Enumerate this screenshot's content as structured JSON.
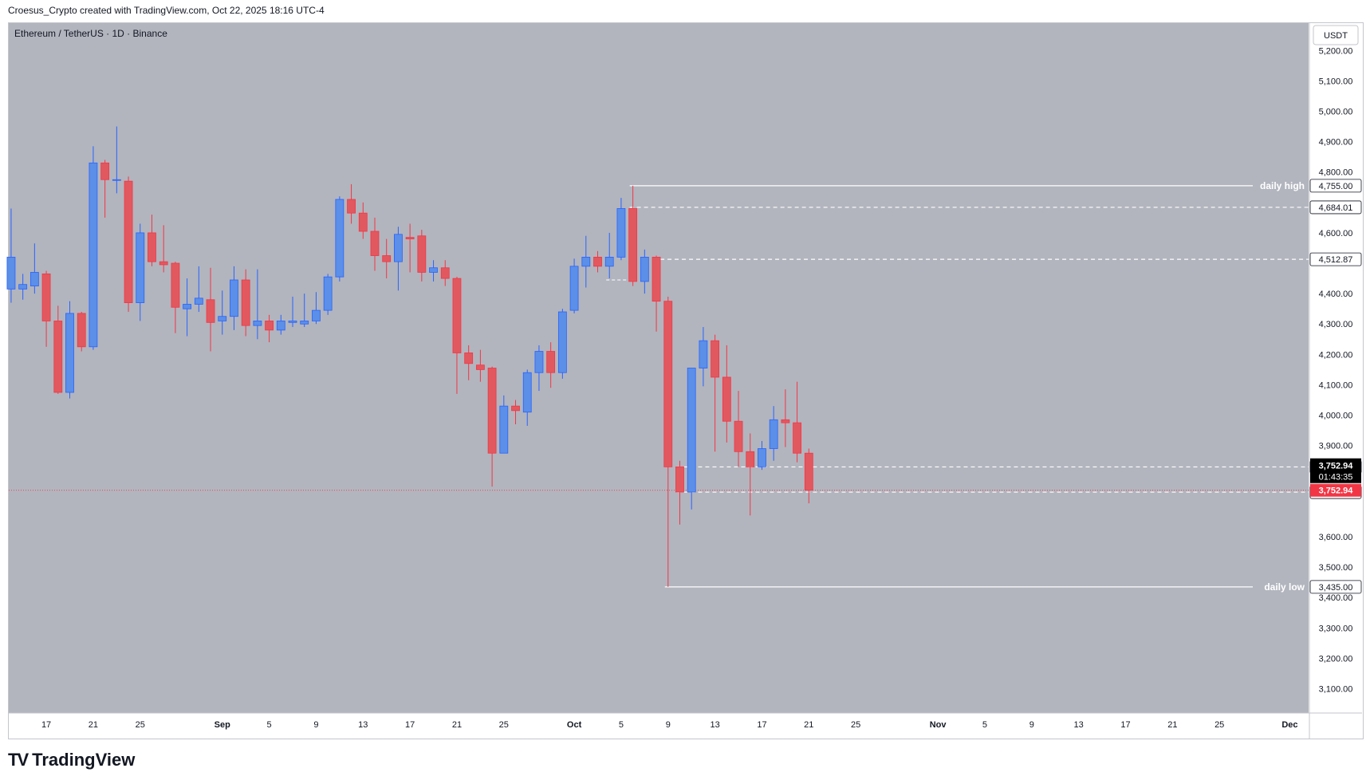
{
  "header": {
    "attribution": "Croesus_Crypto created with TradingView.com, Oct 22, 2025 18:16 UTC-4"
  },
  "symbol": {
    "title": "Ethereum / TetherUS · 1D · Binance"
  },
  "currency_button": {
    "label": "USDT"
  },
  "logo": {
    "mark": "TV",
    "text": "TradingView"
  },
  "colors": {
    "background": "#b2b5be",
    "up": "#5b8fe8",
    "up_wick": "#2962ff",
    "down": "#e2585f",
    "down_wick": "#f23645",
    "level_line": "#ffffff",
    "price_badge": "#f23645",
    "countdown_badge": "#000000"
  },
  "chart_data": {
    "type": "candlestick",
    "title": "Ethereum / TetherUS · 1D · Binance",
    "interval": "1D",
    "ylim": [
      3020,
      5290
    ],
    "y_ticks": [
      {
        "value": 3100,
        "label": "3,100.00"
      },
      {
        "value": 3200,
        "label": "3,200.00"
      },
      {
        "value": 3300,
        "label": "3,300.00"
      },
      {
        "value": 3400,
        "label": "3,400.00"
      },
      {
        "value": 3500,
        "label": "3,500.00"
      },
      {
        "value": 3600,
        "label": "3,600.00"
      },
      {
        "value": 3900,
        "label": "3,900.00"
      },
      {
        "value": 4000,
        "label": "4,000.00"
      },
      {
        "value": 4100,
        "label": "4,100.00"
      },
      {
        "value": 4200,
        "label": "4,200.00"
      },
      {
        "value": 4300,
        "label": "4,300.00"
      },
      {
        "value": 4400,
        "label": "4,400.00"
      },
      {
        "value": 4600,
        "label": "4,600.00"
      },
      {
        "value": 4800,
        "label": "4,800.00"
      },
      {
        "value": 4900,
        "label": "4,900.00"
      },
      {
        "value": 5000,
        "label": "5,000.00"
      },
      {
        "value": 5100,
        "label": "5,100.00"
      },
      {
        "value": 5200,
        "label": "5,200.00"
      }
    ],
    "x_ticks": [
      {
        "day": 17,
        "label": "17"
      },
      {
        "day": 21,
        "label": "21"
      },
      {
        "day": 25,
        "label": "25"
      },
      {
        "day": 32,
        "label": "Sep"
      },
      {
        "day": 36,
        "label": "5"
      },
      {
        "day": 40,
        "label": "9"
      },
      {
        "day": 44,
        "label": "13"
      },
      {
        "day": 48,
        "label": "17"
      },
      {
        "day": 52,
        "label": "21"
      },
      {
        "day": 56,
        "label": "25"
      },
      {
        "day": 62,
        "label": "Oct"
      },
      {
        "day": 66,
        "label": "5"
      },
      {
        "day": 70,
        "label": "9"
      },
      {
        "day": 74,
        "label": "13"
      },
      {
        "day": 78,
        "label": "17"
      },
      {
        "day": 82,
        "label": "21"
      },
      {
        "day": 86,
        "label": "25"
      },
      {
        "day": 93,
        "label": "Nov"
      },
      {
        "day": 97,
        "label": "5"
      },
      {
        "day": 101,
        "label": "9"
      },
      {
        "day": 105,
        "label": "13"
      },
      {
        "day": 109,
        "label": "17"
      },
      {
        "day": 113,
        "label": "21"
      },
      {
        "day": 117,
        "label": "25"
      },
      {
        "day": 123,
        "label": "Dec"
      }
    ],
    "x_range": [
      13.8,
      124.6
    ],
    "candles": [
      {
        "d": 14,
        "o": 4415,
        "h": 4680,
        "l": 4370,
        "c": 4520
      },
      {
        "d": 15,
        "o": 4415,
        "h": 4465,
        "l": 4380,
        "c": 4430
      },
      {
        "d": 16,
        "o": 4425,
        "h": 4565,
        "l": 4400,
        "c": 4470
      },
      {
        "d": 17,
        "o": 4465,
        "h": 4475,
        "l": 4225,
        "c": 4310
      },
      {
        "d": 18,
        "o": 4310,
        "h": 4360,
        "l": 4070,
        "c": 4075
      },
      {
        "d": 19,
        "o": 4075,
        "h": 4375,
        "l": 4055,
        "c": 4335
      },
      {
        "d": 20,
        "o": 4335,
        "h": 4340,
        "l": 4210,
        "c": 4225
      },
      {
        "d": 21,
        "o": 4225,
        "h": 4885,
        "l": 4215,
        "c": 4830
      },
      {
        "d": 22,
        "o": 4830,
        "h": 4840,
        "l": 4650,
        "c": 4775
      },
      {
        "d": 23,
        "o": 4775,
        "h": 4950,
        "l": 4730,
        "c": 4775
      },
      {
        "d": 24,
        "o": 4770,
        "h": 4785,
        "l": 4340,
        "c": 4370
      },
      {
        "d": 25,
        "o": 4370,
        "h": 4630,
        "l": 4310,
        "c": 4600
      },
      {
        "d": 26,
        "o": 4600,
        "h": 4660,
        "l": 4490,
        "c": 4505
      },
      {
        "d": 27,
        "o": 4505,
        "h": 4625,
        "l": 4470,
        "c": 4495
      },
      {
        "d": 28,
        "o": 4500,
        "h": 4505,
        "l": 4270,
        "c": 4355
      },
      {
        "d": 29,
        "o": 4350,
        "h": 4450,
        "l": 4260,
        "c": 4365
      },
      {
        "d": 30,
        "o": 4365,
        "h": 4490,
        "l": 4340,
        "c": 4385
      },
      {
        "d": 31,
        "o": 4380,
        "h": 4485,
        "l": 4210,
        "c": 4305
      },
      {
        "d": 32,
        "o": 4310,
        "h": 4410,
        "l": 4265,
        "c": 4325
      },
      {
        "d": 33,
        "o": 4325,
        "h": 4490,
        "l": 4280,
        "c": 4445
      },
      {
        "d": 34,
        "o": 4445,
        "h": 4480,
        "l": 4260,
        "c": 4295
      },
      {
        "d": 35,
        "o": 4295,
        "h": 4480,
        "l": 4250,
        "c": 4310
      },
      {
        "d": 36,
        "o": 4310,
        "h": 4330,
        "l": 4240,
        "c": 4280
      },
      {
        "d": 37,
        "o": 4280,
        "h": 4330,
        "l": 4265,
        "c": 4310
      },
      {
        "d": 38,
        "o": 4305,
        "h": 4390,
        "l": 4290,
        "c": 4310
      },
      {
        "d": 39,
        "o": 4300,
        "h": 4400,
        "l": 4290,
        "c": 4310
      },
      {
        "d": 40,
        "o": 4310,
        "h": 4405,
        "l": 4300,
        "c": 4345
      },
      {
        "d": 41,
        "o": 4345,
        "h": 4465,
        "l": 4330,
        "c": 4455
      },
      {
        "d": 42,
        "o": 4455,
        "h": 4720,
        "l": 4440,
        "c": 4710
      },
      {
        "d": 43,
        "o": 4710,
        "h": 4760,
        "l": 4630,
        "c": 4665
      },
      {
        "d": 44,
        "o": 4665,
        "h": 4700,
        "l": 4580,
        "c": 4605
      },
      {
        "d": 45,
        "o": 4605,
        "h": 4650,
        "l": 4475,
        "c": 4525
      },
      {
        "d": 46,
        "o": 4525,
        "h": 4580,
        "l": 4450,
        "c": 4505
      },
      {
        "d": 47,
        "o": 4505,
        "h": 4620,
        "l": 4410,
        "c": 4595
      },
      {
        "d": 48,
        "o": 4585,
        "h": 4630,
        "l": 4470,
        "c": 4580
      },
      {
        "d": 49,
        "o": 4590,
        "h": 4610,
        "l": 4440,
        "c": 4470
      },
      {
        "d": 50,
        "o": 4470,
        "h": 4510,
        "l": 4440,
        "c": 4485
      },
      {
        "d": 51,
        "o": 4485,
        "h": 4510,
        "l": 4425,
        "c": 4450
      },
      {
        "d": 52,
        "o": 4450,
        "h": 4455,
        "l": 4070,
        "c": 4205
      },
      {
        "d": 53,
        "o": 4205,
        "h": 4230,
        "l": 4115,
        "c": 4170
      },
      {
        "d": 54,
        "o": 4165,
        "h": 4215,
        "l": 4110,
        "c": 4150
      },
      {
        "d": 55,
        "o": 4155,
        "h": 4160,
        "l": 3765,
        "c": 3875
      },
      {
        "d": 56,
        "o": 3875,
        "h": 4065,
        "l": 3875,
        "c": 4030
      },
      {
        "d": 57,
        "o": 4030,
        "h": 4050,
        "l": 3970,
        "c": 4015
      },
      {
        "d": 58,
        "o": 4010,
        "h": 4150,
        "l": 3965,
        "c": 4140
      },
      {
        "d": 59,
        "o": 4140,
        "h": 4230,
        "l": 4080,
        "c": 4210
      },
      {
        "d": 60,
        "o": 4210,
        "h": 4240,
        "l": 4090,
        "c": 4140
      },
      {
        "d": 61,
        "o": 4140,
        "h": 4350,
        "l": 4120,
        "c": 4340
      },
      {
        "d": 62,
        "o": 4345,
        "h": 4515,
        "l": 4335,
        "c": 4490
      },
      {
        "d": 63,
        "o": 4490,
        "h": 4590,
        "l": 4420,
        "c": 4520
      },
      {
        "d": 64,
        "o": 4520,
        "h": 4540,
        "l": 4470,
        "c": 4490
      },
      {
        "d": 65,
        "o": 4490,
        "h": 4600,
        "l": 4450,
        "c": 4520
      },
      {
        "d": 66,
        "o": 4520,
        "h": 4715,
        "l": 4510,
        "c": 4680
      },
      {
        "d": 67,
        "o": 4680,
        "h": 4755,
        "l": 4425,
        "c": 4440
      },
      {
        "d": 68,
        "o": 4440,
        "h": 4545,
        "l": 4400,
        "c": 4520
      },
      {
        "d": 69,
        "o": 4520,
        "h": 4525,
        "l": 4275,
        "c": 4375
      },
      {
        "d": 70,
        "o": 4375,
        "h": 4390,
        "l": 3435,
        "c": 3830
      },
      {
        "d": 71,
        "o": 3830,
        "h": 3850,
        "l": 3640,
        "c": 3747
      },
      {
        "d": 72,
        "o": 3747,
        "h": 4155,
        "l": 3690,
        "c": 4155
      },
      {
        "d": 73,
        "o": 4155,
        "h": 4290,
        "l": 4095,
        "c": 4245
      },
      {
        "d": 74,
        "o": 4245,
        "h": 4265,
        "l": 3880,
        "c": 4125
      },
      {
        "d": 75,
        "o": 4125,
        "h": 4230,
        "l": 3910,
        "c": 3980
      },
      {
        "d": 76,
        "o": 3980,
        "h": 4080,
        "l": 3830,
        "c": 3880
      },
      {
        "d": 77,
        "o": 3880,
        "h": 3940,
        "l": 3670,
        "c": 3830
      },
      {
        "d": 78,
        "o": 3830,
        "h": 3915,
        "l": 3820,
        "c": 3890
      },
      {
        "d": 79,
        "o": 3890,
        "h": 4030,
        "l": 3850,
        "c": 3985
      },
      {
        "d": 80,
        "o": 3985,
        "h": 4085,
        "l": 3895,
        "c": 3975
      },
      {
        "d": 81,
        "o": 3975,
        "h": 4110,
        "l": 3845,
        "c": 3875
      },
      {
        "d": 82,
        "o": 3875,
        "h": 3890,
        "l": 3710,
        "c": 3753
      }
    ],
    "levels": [
      {
        "name": "daily high",
        "price": 4755,
        "label": "4,755.00",
        "start_day": 67,
        "style": "solid",
        "text": "daily high"
      },
      {
        "name": "level-4684",
        "price": 4684.01,
        "label": "4,684.01",
        "start_day": 67,
        "style": "dashed",
        "text": ""
      },
      {
        "name": "level-4512",
        "price": 4512.87,
        "label": "4,512.87",
        "start_day": 69,
        "style": "dashed",
        "text": ""
      },
      {
        "name": "level-3829",
        "price": 3829.72,
        "label": "3,829.72",
        "start_day": 71,
        "style": "dashed",
        "text": ""
      },
      {
        "name": "level-3746",
        "price": 3746.79,
        "label": "3,746.79",
        "start_day": 71,
        "style": "dashed",
        "text": ""
      },
      {
        "name": "daily low",
        "price": 3435,
        "label": "3,435.00",
        "start_day": 70,
        "style": "solid",
        "text": "daily low"
      }
    ],
    "small_level": {
      "price": 4445,
      "start_day": 65,
      "end_day": 67
    },
    "current_price": {
      "price": 3752.94,
      "label": "3,752.94",
      "countdown": "01:43:35"
    }
  }
}
